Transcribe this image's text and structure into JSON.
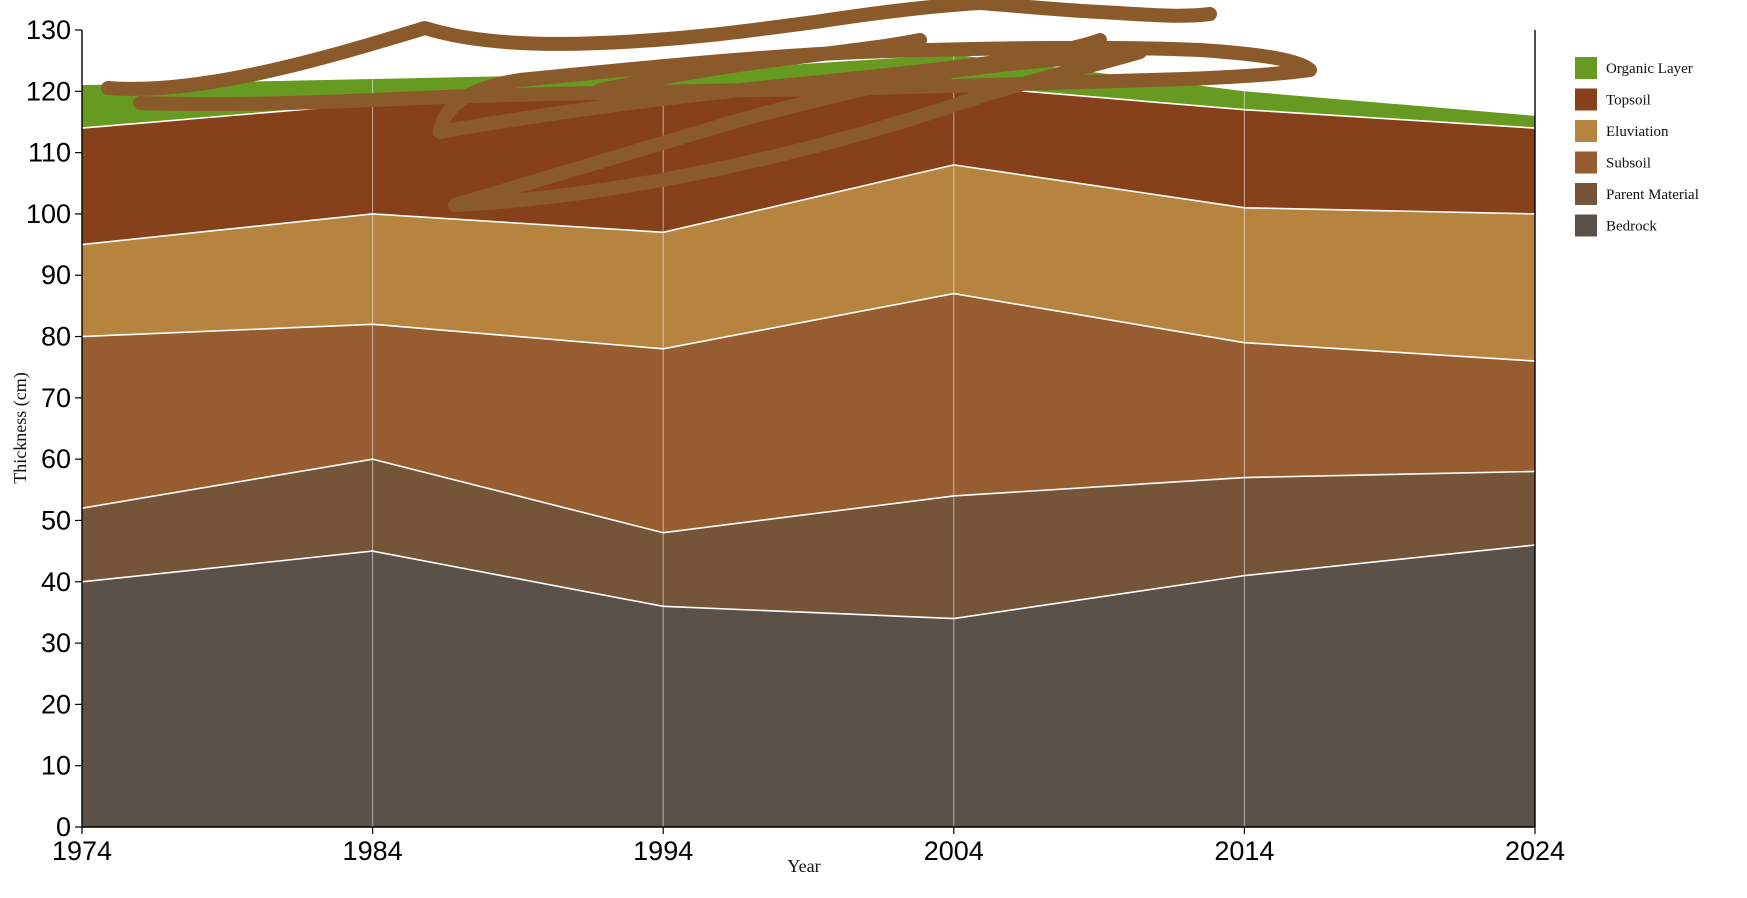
{
  "chart_data": {
    "type": "area",
    "stacked": true,
    "x": [
      1974,
      1984,
      1994,
      2004,
      2014,
      2024
    ],
    "xlabel": "Year",
    "ylabel": "Thickness (cm)",
    "ylim": [
      0,
      130
    ],
    "yticks": [
      0,
      10,
      20,
      30,
      40,
      50,
      60,
      70,
      80,
      90,
      100,
      110,
      120,
      130
    ],
    "grid": "vertical",
    "legend_position": "top-right",
    "series": [
      {
        "name": "Bedrock",
        "color": "#5b5149",
        "values": [
          40,
          45,
          36,
          34,
          41,
          46
        ]
      },
      {
        "name": "Parent Material",
        "color": "#765438",
        "values": [
          12,
          15,
          12,
          20,
          16,
          12
        ]
      },
      {
        "name": "Subsoil",
        "color": "#975c2f",
        "values": [
          28,
          22,
          30,
          33,
          22,
          18
        ]
      },
      {
        "name": "Eluviation",
        "color": "#b7843f",
        "values": [
          15,
          18,
          19,
          21,
          22,
          24
        ]
      },
      {
        "name": "Topsoil",
        "color": "#86411b",
        "values": [
          19,
          18,
          22,
          13,
          16,
          14
        ]
      },
      {
        "name": "Organic Layer",
        "color": "#669a21",
        "values": [
          7,
          4,
          4,
          5,
          3,
          2
        ]
      }
    ],
    "legend_order": [
      "Organic Layer",
      "Topsoil",
      "Eluviation",
      "Subsoil",
      "Parent Material",
      "Bedrock"
    ],
    "scribble_color": "#8b5a2b"
  }
}
